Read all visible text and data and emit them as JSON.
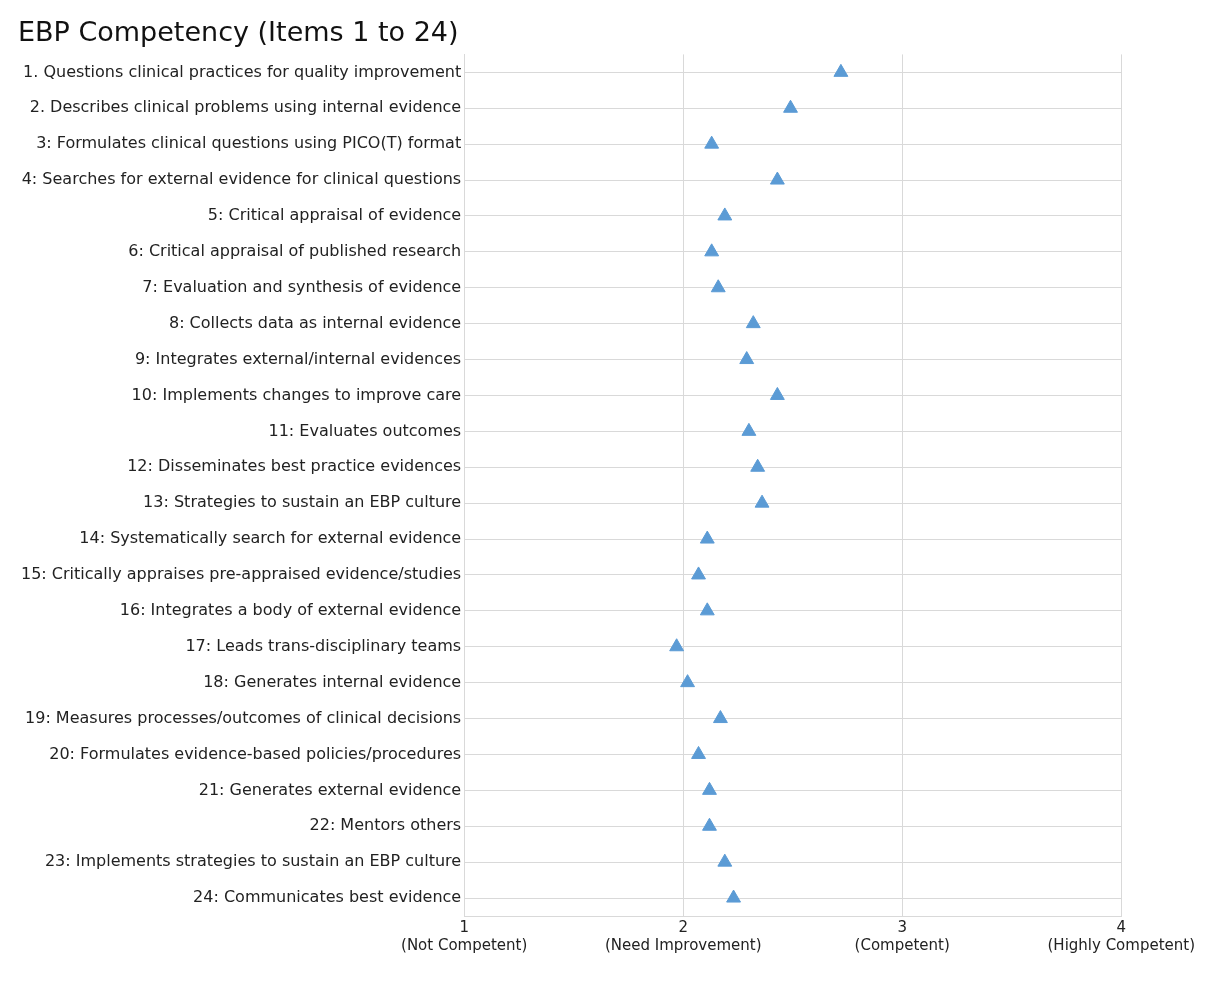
{
  "chart_data": {
    "type": "scatter",
    "orientation": "horizontal",
    "title": "EBP Competency (Items 1 to 24)",
    "categories": [
      "1. Questions clinical practices for quality improvement",
      "2. Describes clinical problems using internal evidence",
      "3: Formulates clinical questions using PICO(T) format",
      "4: Searches for external evidence for clinical questions",
      "5: Critical appraisal of evidence",
      "6: Critical appraisal of published research",
      "7: Evaluation and synthesis of evidence",
      "8: Collects data as internal evidence",
      "9: Integrates external/internal evidences",
      "10: Implements changes to improve care",
      "11: Evaluates outcomes",
      "12: Disseminates best practice evidences",
      "13: Strategies to sustain an EBP culture",
      "14: Systematically search for external evidence",
      "15: Critically appraises pre-appraised evidence/studies",
      "16: Integrates a body of external evidence",
      "17: Leads trans-disciplinary teams",
      "18: Generates internal evidence",
      "19: Measures processes/outcomes of clinical decisions",
      "20: Formulates evidence-based policies/procedures",
      "21: Generates external evidence",
      "22: Mentors others",
      "23: Implements strategies to sustain an EBP culture",
      "24: Communicates best evidence"
    ],
    "values": [
      2.72,
      2.49,
      2.13,
      2.43,
      2.19,
      2.13,
      2.16,
      2.32,
      2.29,
      2.43,
      2.3,
      2.34,
      2.36,
      2.11,
      2.07,
      2.11,
      1.97,
      2.02,
      2.17,
      2.07,
      2.12,
      2.12,
      2.19,
      2.23
    ],
    "color": "#5b9bd5",
    "marker": "triangle",
    "xlim": [
      1,
      4
    ],
    "xticks": [
      {
        "value": 1,
        "label": "1\n(Not Competent)"
      },
      {
        "value": 2,
        "label": "2\n(Need Improvement)"
      },
      {
        "value": 3,
        "label": "3\n(Competent)"
      },
      {
        "value": 4,
        "label": "4\n(Highly Competent)"
      }
    ],
    "grid": true,
    "legend": false
  }
}
